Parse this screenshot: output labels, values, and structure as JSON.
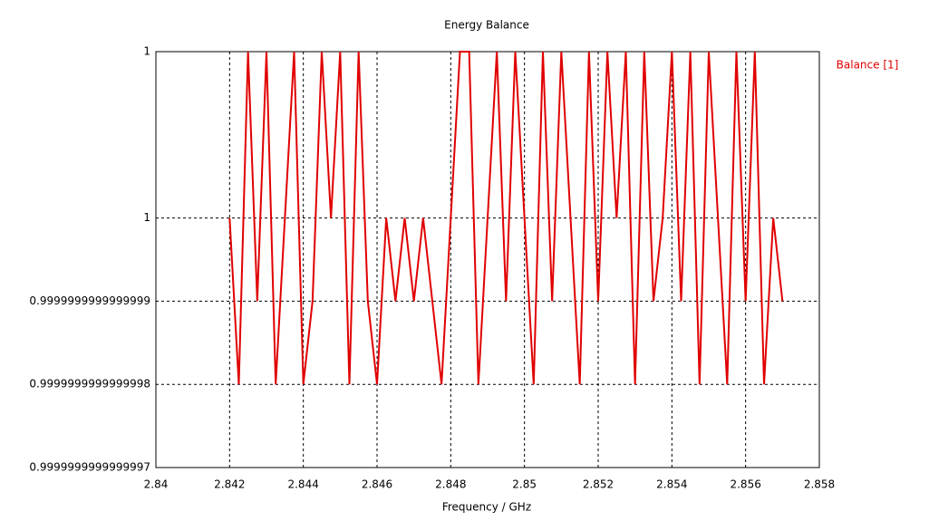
{
  "chart_data": {
    "type": "line",
    "title": "Energy Balance",
    "x_label": "Frequency / GHz",
    "x": [
      2.842,
      2.84225,
      2.8425,
      2.84275,
      2.843,
      2.84325,
      2.8435,
      2.84375,
      2.844,
      2.84425,
      2.8445,
      2.84475,
      2.845,
      2.84525,
      2.8455,
      2.84575,
      2.846,
      2.84625,
      2.8465,
      2.84675,
      2.847,
      2.84725,
      2.8475,
      2.84775,
      2.848,
      2.84825,
      2.8485,
      2.84875,
      2.849,
      2.84925,
      2.8495,
      2.84975,
      2.85,
      2.85025,
      2.8505,
      2.85075,
      2.851,
      2.85125,
      2.8515,
      2.85175,
      2.852,
      2.85225,
      2.8525,
      2.85275,
      2.853,
      2.85325,
      2.8535,
      2.85375,
      2.854,
      2.85425,
      2.8545,
      2.85475,
      2.855,
      2.85525,
      2.8555,
      2.85575,
      2.856,
      2.85625,
      2.8565,
      2.85675,
      2.857
    ],
    "series": [
      {
        "name": "Balance [1]",
        "color": "#e00000",
        "values": [
          1,
          0.9999999999999998,
          1.0000000000000002,
          0.9999999999999999,
          1.0000000000000002,
          0.9999999999999998,
          1,
          1.0000000000000002,
          0.9999999999999998,
          0.9999999999999999,
          1.0000000000000002,
          1,
          1.0000000000000002,
          0.9999999999999998,
          1.0000000000000002,
          0.9999999999999999,
          0.9999999999999998,
          1,
          0.9999999999999999,
          1,
          0.9999999999999999,
          1,
          0.9999999999999999,
          0.9999999999999998,
          1,
          1.0000000000000002,
          1.0000000000000002,
          0.9999999999999998,
          1,
          1.0000000000000002,
          0.9999999999999999,
          1.0000000000000002,
          1,
          0.9999999999999998,
          1.0000000000000002,
          0.9999999999999999,
          1.0000000000000002,
          1,
          0.9999999999999998,
          1.0000000000000002,
          0.9999999999999999,
          1.0000000000000002,
          1,
          1.0000000000000002,
          0.9999999999999998,
          1.0000000000000002,
          0.9999999999999999,
          1,
          1.0000000000000002,
          0.9999999999999999,
          1.0000000000000002,
          0.9999999999999998,
          1.0000000000000002,
          1,
          0.9999999999999998,
          1.0000000000000002,
          0.9999999999999999,
          1.0000000000000002,
          0.9999999999999998,
          1,
          0.9999999999999999
        ]
      }
    ],
    "xlim": [
      2.84,
      2.858
    ],
    "xticks": [
      2.84,
      2.842,
      2.844,
      2.846,
      2.848,
      2.85,
      2.852,
      2.854,
      2.856,
      2.858
    ],
    "ylim": [
      0.9999999999999997,
      1.0000000000000002
    ],
    "yticks": [
      0.9999999999999997,
      0.9999999999999998,
      0.9999999999999999,
      1,
      {
        "value": 1.0000000000000002,
        "label": "1"
      }
    ],
    "grid": true,
    "legend": "top-right"
  }
}
